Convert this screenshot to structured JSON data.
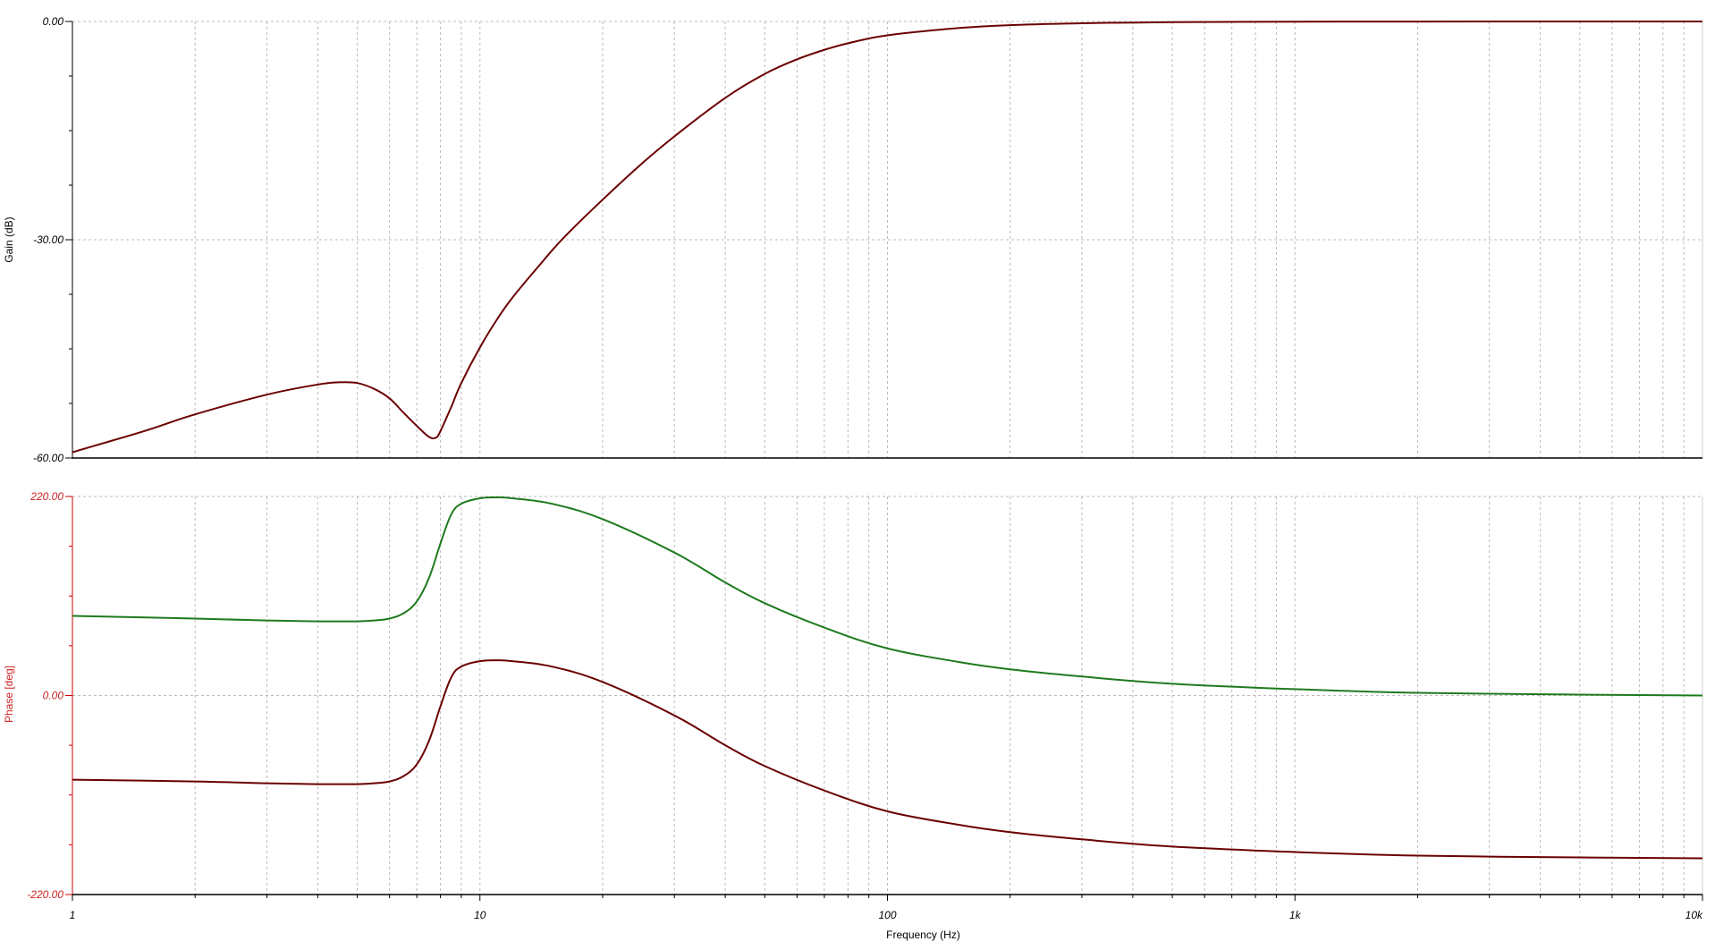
{
  "chart_data": [
    {
      "type": "line",
      "ylabel": "Gain (dB)",
      "xscale": "log",
      "xlim": [
        1,
        10000
      ],
      "ylim": [
        -60,
        0
      ],
      "grid": true,
      "yticks": [
        {
          "value": 0,
          "label": "0.00"
        },
        {
          "value": -30,
          "label": "-30.00"
        },
        {
          "value": -60,
          "label": "-60.00"
        }
      ],
      "colors": {
        "axis": "#000000",
        "label": "#000000",
        "grid": "#bbbbbb"
      },
      "series": [
        {
          "color": "#6b0000",
          "x": [
            1,
            1.5,
            2,
            3,
            4,
            4.5,
            5,
            5.5,
            6,
            6.5,
            7,
            7.5,
            7.8,
            8,
            8.5,
            9,
            10,
            11,
            12,
            14,
            16,
            20,
            25,
            30,
            40,
            50,
            60,
            70,
            80,
            100,
            150,
            200,
            300,
            500,
            1000,
            2000,
            5000,
            10000
          ],
          "y": [
            -59.2,
            -56.3,
            -54.0,
            -51.3,
            -49.9,
            -49.6,
            -49.7,
            -50.5,
            -51.8,
            -53.8,
            -55.6,
            -57.1,
            -57.2,
            -56.3,
            -53.0,
            -49.7,
            -44.8,
            -41.0,
            -38.0,
            -33.5,
            -29.8,
            -24.5,
            -19.5,
            -15.8,
            -10.5,
            -7.2,
            -5.2,
            -3.9,
            -3.0,
            -1.9,
            -0.9,
            -0.5,
            -0.25,
            -0.1,
            -0.03,
            -0.01,
            0,
            0
          ]
        }
      ]
    },
    {
      "type": "line",
      "ylabel": "Phase [deg]",
      "xlabel": "Frequency (Hz)",
      "xscale": "log",
      "xlim": [
        1,
        10000
      ],
      "ylim": [
        -220,
        220
      ],
      "grid": true,
      "xticks": [
        {
          "value": 1,
          "label": "1"
        },
        {
          "value": 10,
          "label": "10"
        },
        {
          "value": 100,
          "label": "100"
        },
        {
          "value": 1000,
          "label": "1k"
        },
        {
          "value": 10000,
          "label": "10k"
        }
      ],
      "yticks": [
        {
          "value": 220,
          "label": "220.00"
        },
        {
          "value": 0,
          "label": "0.00"
        },
        {
          "value": -220,
          "label": "-220.00"
        }
      ],
      "colors": {
        "axis": "#cc0000",
        "label": "#cc2222",
        "grid": "#bbbbbb"
      },
      "series": [
        {
          "color": "#1e7a1e",
          "x": [
            1,
            2,
            3,
            4,
            4.5,
            5,
            5.5,
            6,
            6.5,
            7,
            7.5,
            8,
            8.5,
            9,
            10,
            11,
            12,
            15,
            20,
            30,
            40,
            50,
            70,
            100,
            150,
            200,
            300,
            500,
            1000,
            2000,
            5000,
            10000
          ],
          "y": [
            88,
            85,
            83,
            82,
            82,
            82,
            83,
            85,
            91,
            104,
            130,
            168,
            200,
            212,
            218,
            219,
            218,
            212,
            195,
            158,
            125,
            102,
            75,
            52,
            37,
            29,
            21,
            13,
            7,
            3,
            1,
            0
          ]
        },
        {
          "color": "#6b0000",
          "x": [
            1,
            2,
            3,
            4,
            4.5,
            5,
            5.5,
            6,
            6.5,
            7,
            7.5,
            8,
            8.5,
            9,
            10,
            11,
            12,
            15,
            20,
            30,
            40,
            50,
            70,
            100,
            150,
            200,
            300,
            500,
            1000,
            2000,
            5000,
            10000
          ],
          "y": [
            -93,
            -95,
            -97,
            -98,
            -98,
            -98,
            -97,
            -95,
            -89,
            -76,
            -50,
            -12,
            20,
            32,
            38,
            39,
            38,
            32,
            15,
            -22,
            -55,
            -78,
            -105,
            -128,
            -143,
            -151,
            -159,
            -167,
            -173,
            -177,
            -179,
            -180
          ]
        }
      ]
    }
  ]
}
